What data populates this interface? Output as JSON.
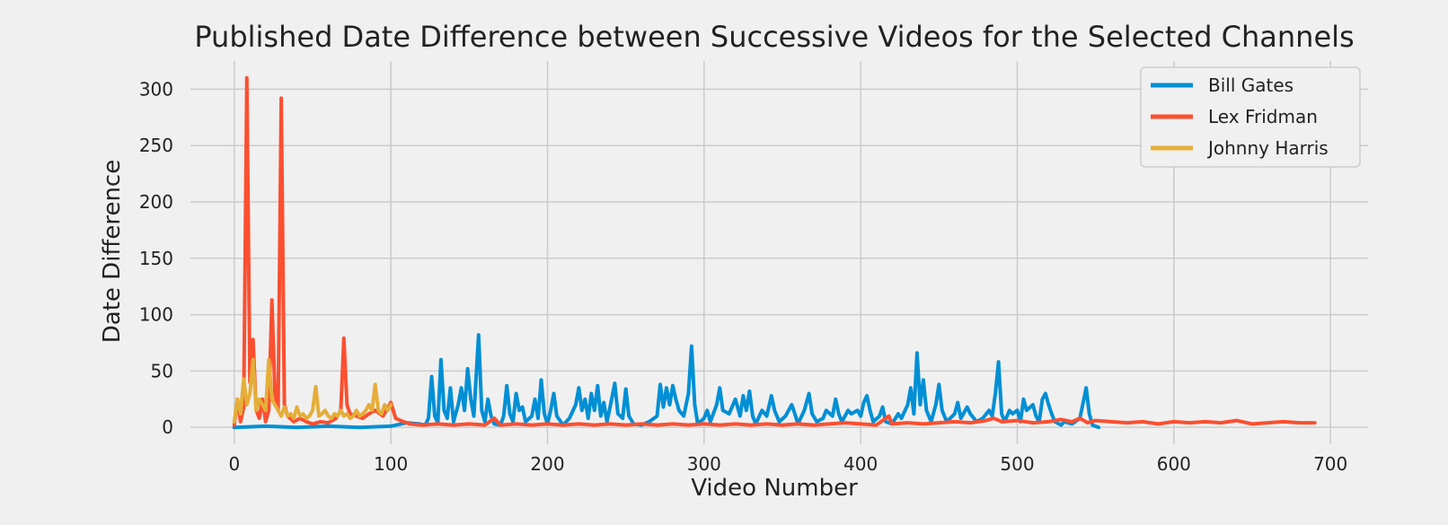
{
  "chart_data": {
    "type": "line",
    "title": "Published Date Difference between Successive Videos for the Selected Channels",
    "xlabel": "Video Number",
    "ylabel": "Date Difference",
    "xlim": [
      -28,
      724
    ],
    "ylim": [
      -15,
      325
    ],
    "xticks": [
      0,
      100,
      200,
      300,
      400,
      500,
      600,
      700
    ],
    "yticks": [
      0,
      50,
      100,
      150,
      200,
      250,
      300
    ],
    "grid": true,
    "legend_position": "top-right",
    "colors": {
      "background": "#f0f0f0",
      "grid": "#cbcbcb",
      "text": "#222222"
    },
    "series": [
      {
        "name": "Bill Gates",
        "color": "#008fd5",
        "points": [
          [
            0,
            0
          ],
          [
            20,
            1
          ],
          [
            40,
            0
          ],
          [
            60,
            1
          ],
          [
            80,
            0
          ],
          [
            100,
            1
          ],
          [
            110,
            4
          ],
          [
            118,
            3
          ],
          [
            122,
            2
          ],
          [
            124,
            8
          ],
          [
            126,
            45
          ],
          [
            128,
            10
          ],
          [
            130,
            4
          ],
          [
            132,
            60
          ],
          [
            134,
            15
          ],
          [
            136,
            8
          ],
          [
            138,
            35
          ],
          [
            140,
            5
          ],
          [
            143,
            20
          ],
          [
            145,
            35
          ],
          [
            147,
            15
          ],
          [
            149,
            52
          ],
          [
            151,
            25
          ],
          [
            153,
            10
          ],
          [
            156,
            82
          ],
          [
            158,
            15
          ],
          [
            160,
            5
          ],
          [
            162,
            25
          ],
          [
            164,
            10
          ],
          [
            166,
            3
          ],
          [
            170,
            2
          ],
          [
            172,
            10
          ],
          [
            174,
            37
          ],
          [
            176,
            12
          ],
          [
            178,
            5
          ],
          [
            180,
            30
          ],
          [
            182,
            15
          ],
          [
            184,
            18
          ],
          [
            186,
            5
          ],
          [
            190,
            10
          ],
          [
            192,
            25
          ],
          [
            194,
            8
          ],
          [
            196,
            42
          ],
          [
            198,
            12
          ],
          [
            200,
            3
          ],
          [
            202,
            15
          ],
          [
            204,
            30
          ],
          [
            206,
            10
          ],
          [
            210,
            2
          ],
          [
            214,
            8
          ],
          [
            218,
            20
          ],
          [
            220,
            35
          ],
          [
            222,
            15
          ],
          [
            224,
            25
          ],
          [
            226,
            8
          ],
          [
            228,
            30
          ],
          [
            230,
            15
          ],
          [
            232,
            37
          ],
          [
            234,
            10
          ],
          [
            236,
            22
          ],
          [
            238,
            5
          ],
          [
            240,
            18
          ],
          [
            243,
            39
          ],
          [
            245,
            12
          ],
          [
            248,
            8
          ],
          [
            250,
            34
          ],
          [
            252,
            10
          ],
          [
            255,
            3
          ],
          [
            260,
            2
          ],
          [
            265,
            5
          ],
          [
            270,
            10
          ],
          [
            272,
            38
          ],
          [
            274,
            18
          ],
          [
            276,
            35
          ],
          [
            278,
            20
          ],
          [
            280,
            37
          ],
          [
            282,
            25
          ],
          [
            284,
            15
          ],
          [
            287,
            10
          ],
          [
            290,
            30
          ],
          [
            292,
            72
          ],
          [
            294,
            20
          ],
          [
            296,
            3
          ],
          [
            300,
            8
          ],
          [
            302,
            15
          ],
          [
            304,
            5
          ],
          [
            308,
            20
          ],
          [
            310,
            35
          ],
          [
            312,
            15
          ],
          [
            316,
            12
          ],
          [
            320,
            25
          ],
          [
            323,
            10
          ],
          [
            325,
            28
          ],
          [
            327,
            15
          ],
          [
            329,
            32
          ],
          [
            331,
            10
          ],
          [
            333,
            3
          ],
          [
            337,
            15
          ],
          [
            340,
            10
          ],
          [
            343,
            28
          ],
          [
            345,
            15
          ],
          [
            348,
            5
          ],
          [
            352,
            10
          ],
          [
            356,
            20
          ],
          [
            358,
            12
          ],
          [
            360,
            3
          ],
          [
            364,
            15
          ],
          [
            367,
            30
          ],
          [
            369,
            12
          ],
          [
            372,
            5
          ],
          [
            376,
            8
          ],
          [
            378,
            15
          ],
          [
            382,
            10
          ],
          [
            384,
            25
          ],
          [
            386,
            12
          ],
          [
            388,
            5
          ],
          [
            392,
            15
          ],
          [
            394,
            12
          ],
          [
            398,
            15
          ],
          [
            400,
            10
          ],
          [
            402,
            22
          ],
          [
            404,
            28
          ],
          [
            406,
            15
          ],
          [
            408,
            5
          ],
          [
            412,
            10
          ],
          [
            414,
            18
          ],
          [
            416,
            5
          ],
          [
            420,
            3
          ],
          [
            424,
            12
          ],
          [
            426,
            8
          ],
          [
            430,
            20
          ],
          [
            432,
            35
          ],
          [
            434,
            12
          ],
          [
            436,
            66
          ],
          [
            438,
            20
          ],
          [
            440,
            42
          ],
          [
            442,
            15
          ],
          [
            445,
            5
          ],
          [
            448,
            20
          ],
          [
            450,
            38
          ],
          [
            452,
            15
          ],
          [
            455,
            5
          ],
          [
            460,
            12
          ],
          [
            462,
            22
          ],
          [
            464,
            8
          ],
          [
            468,
            18
          ],
          [
            470,
            12
          ],
          [
            474,
            5
          ],
          [
            478,
            8
          ],
          [
            482,
            15
          ],
          [
            484,
            10
          ],
          [
            486,
            30
          ],
          [
            488,
            58
          ],
          [
            490,
            12
          ],
          [
            492,
            5
          ],
          [
            495,
            15
          ],
          [
            497,
            12
          ],
          [
            500,
            15
          ],
          [
            502,
            5
          ],
          [
            504,
            25
          ],
          [
            506,
            15
          ],
          [
            510,
            20
          ],
          [
            512,
            10
          ],
          [
            514,
            5
          ],
          [
            516,
            25
          ],
          [
            518,
            30
          ],
          [
            520,
            20
          ],
          [
            522,
            12
          ],
          [
            524,
            5
          ],
          [
            528,
            2
          ],
          [
            530,
            5
          ],
          [
            535,
            3
          ],
          [
            540,
            8
          ],
          [
            544,
            35
          ],
          [
            546,
            12
          ],
          [
            548,
            2
          ],
          [
            552,
            0
          ]
        ]
      },
      {
        "name": "Lex Fridman",
        "color": "#fc4f30",
        "points": [
          [
            0,
            2
          ],
          [
            2,
            25
          ],
          [
            4,
            5
          ],
          [
            6,
            18
          ],
          [
            8,
            310
          ],
          [
            10,
            40
          ],
          [
            12,
            78
          ],
          [
            14,
            15
          ],
          [
            16,
            8
          ],
          [
            18,
            25
          ],
          [
            20,
            5
          ],
          [
            22,
            15
          ],
          [
            24,
            113
          ],
          [
            26,
            30
          ],
          [
            28,
            15
          ],
          [
            30,
            292
          ],
          [
            32,
            20
          ],
          [
            34,
            10
          ],
          [
            38,
            5
          ],
          [
            42,
            8
          ],
          [
            46,
            5
          ],
          [
            50,
            3
          ],
          [
            55,
            5
          ],
          [
            60,
            4
          ],
          [
            65,
            8
          ],
          [
            68,
            15
          ],
          [
            70,
            79
          ],
          [
            72,
            20
          ],
          [
            74,
            12
          ],
          [
            78,
            10
          ],
          [
            82,
            8
          ],
          [
            86,
            12
          ],
          [
            90,
            15
          ],
          [
            95,
            10
          ],
          [
            100,
            22
          ],
          [
            103,
            8
          ],
          [
            108,
            5
          ],
          [
            112,
            3
          ],
          [
            120,
            2
          ],
          [
            130,
            3
          ],
          [
            140,
            2
          ],
          [
            150,
            3
          ],
          [
            160,
            2
          ],
          [
            166,
            8
          ],
          [
            170,
            2
          ],
          [
            180,
            3
          ],
          [
            190,
            2
          ],
          [
            200,
            3
          ],
          [
            210,
            2
          ],
          [
            220,
            3
          ],
          [
            230,
            2
          ],
          [
            240,
            3
          ],
          [
            250,
            2
          ],
          [
            260,
            3
          ],
          [
            270,
            2
          ],
          [
            280,
            3
          ],
          [
            290,
            2
          ],
          [
            300,
            3
          ],
          [
            310,
            2
          ],
          [
            320,
            3
          ],
          [
            330,
            2
          ],
          [
            340,
            3
          ],
          [
            350,
            2
          ],
          [
            360,
            3
          ],
          [
            370,
            2
          ],
          [
            380,
            3
          ],
          [
            390,
            4
          ],
          [
            400,
            3
          ],
          [
            410,
            2
          ],
          [
            418,
            10
          ],
          [
            420,
            3
          ],
          [
            430,
            4
          ],
          [
            440,
            3
          ],
          [
            450,
            4
          ],
          [
            460,
            5
          ],
          [
            470,
            4
          ],
          [
            480,
            6
          ],
          [
            485,
            8
          ],
          [
            490,
            5
          ],
          [
            500,
            6
          ],
          [
            510,
            4
          ],
          [
            520,
            5
          ],
          [
            528,
            7
          ],
          [
            535,
            5
          ],
          [
            540,
            8
          ],
          [
            545,
            4
          ],
          [
            550,
            6
          ],
          [
            560,
            5
          ],
          [
            570,
            4
          ],
          [
            580,
            5
          ],
          [
            590,
            3
          ],
          [
            600,
            5
          ],
          [
            610,
            4
          ],
          [
            620,
            5
          ],
          [
            630,
            4
          ],
          [
            640,
            6
          ],
          [
            650,
            3
          ],
          [
            660,
            4
          ],
          [
            670,
            5
          ],
          [
            680,
            4
          ],
          [
            690,
            4
          ]
        ]
      },
      {
        "name": "Johnny Harris",
        "color": "#e5ae38",
        "points": [
          [
            0,
            5
          ],
          [
            2,
            25
          ],
          [
            4,
            12
          ],
          [
            6,
            43
          ],
          [
            8,
            20
          ],
          [
            10,
            30
          ],
          [
            12,
            60
          ],
          [
            14,
            15
          ],
          [
            16,
            25
          ],
          [
            18,
            20
          ],
          [
            20,
            15
          ],
          [
            22,
            60
          ],
          [
            24,
            25
          ],
          [
            26,
            20
          ],
          [
            28,
            15
          ],
          [
            30,
            10
          ],
          [
            32,
            18
          ],
          [
            34,
            10
          ],
          [
            36,
            12
          ],
          [
            38,
            8
          ],
          [
            40,
            18
          ],
          [
            42,
            10
          ],
          [
            44,
            12
          ],
          [
            46,
            8
          ],
          [
            48,
            10
          ],
          [
            50,
            15
          ],
          [
            52,
            36
          ],
          [
            54,
            10
          ],
          [
            56,
            12
          ],
          [
            58,
            15
          ],
          [
            60,
            10
          ],
          [
            62,
            8
          ],
          [
            64,
            12
          ],
          [
            66,
            10
          ],
          [
            68,
            15
          ],
          [
            70,
            10
          ],
          [
            72,
            12
          ],
          [
            74,
            8
          ],
          [
            76,
            10
          ],
          [
            78,
            15
          ],
          [
            80,
            10
          ],
          [
            82,
            12
          ],
          [
            84,
            15
          ],
          [
            86,
            20
          ],
          [
            88,
            15
          ],
          [
            90,
            38
          ],
          [
            92,
            15
          ],
          [
            94,
            12
          ],
          [
            96,
            20
          ],
          [
            98,
            15
          ],
          [
            100,
            20
          ]
        ]
      }
    ]
  }
}
